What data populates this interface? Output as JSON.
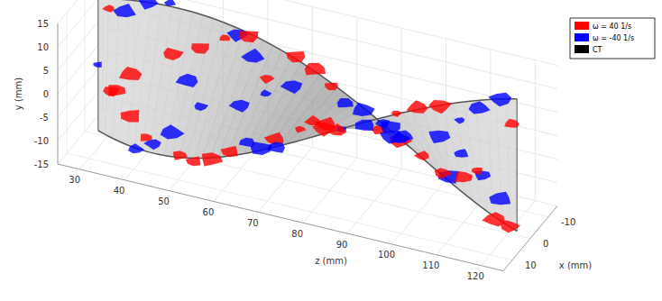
{
  "chart_data": {
    "type": "surface3d",
    "series": [
      {
        "name": "ω = 40 1/s",
        "color": "#ff0000"
      },
      {
        "name": "ω = -40 1/s",
        "color": "#0000ff"
      },
      {
        "name": "CT",
        "color": "#000000"
      }
    ],
    "x_label": "x (mm)",
    "y_label": "y (mm)",
    "z_label": "z (mm)",
    "xlim": [
      -15,
      15
    ],
    "xticks": [
      -10,
      0,
      10
    ],
    "ylim": [
      -15,
      15
    ],
    "yticks": [
      -15,
      -10,
      -5,
      0,
      5,
      10,
      15
    ],
    "zlim": [
      25,
      125
    ],
    "zticks": [
      30,
      40,
      50,
      60,
      70,
      80,
      90,
      100,
      110,
      120
    ],
    "legend": "upper right",
    "grid": true
  }
}
